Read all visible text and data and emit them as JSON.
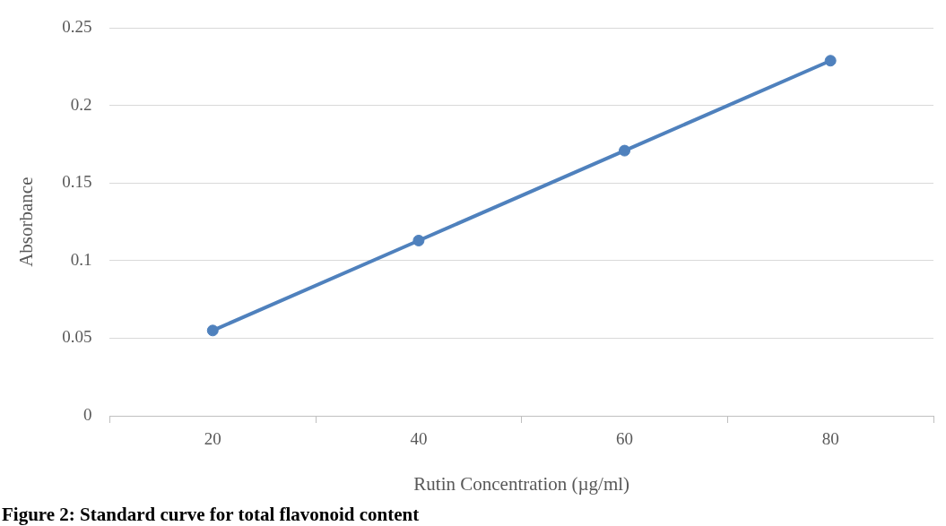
{
  "chart_data": {
    "type": "line",
    "xlabel": "Rutin Concentration (µg/ml)",
    "ylabel": "Absorbance",
    "categories": [
      "20",
      "40",
      "60",
      "80"
    ],
    "series": [
      {
        "color": "#4f81bd",
        "values": [
          0.055,
          0.113,
          0.171,
          0.229
        ]
      }
    ],
    "ylim": [
      0,
      0.25
    ],
    "yticks": [
      0,
      0.05,
      0.1,
      0.15,
      0.2,
      0.25
    ],
    "grid": "y",
    "legend": false,
    "marker": "circle",
    "line_style": "solid",
    "annotations": [
      "Figure 2: Standard curve for total flavonoid content"
    ]
  }
}
